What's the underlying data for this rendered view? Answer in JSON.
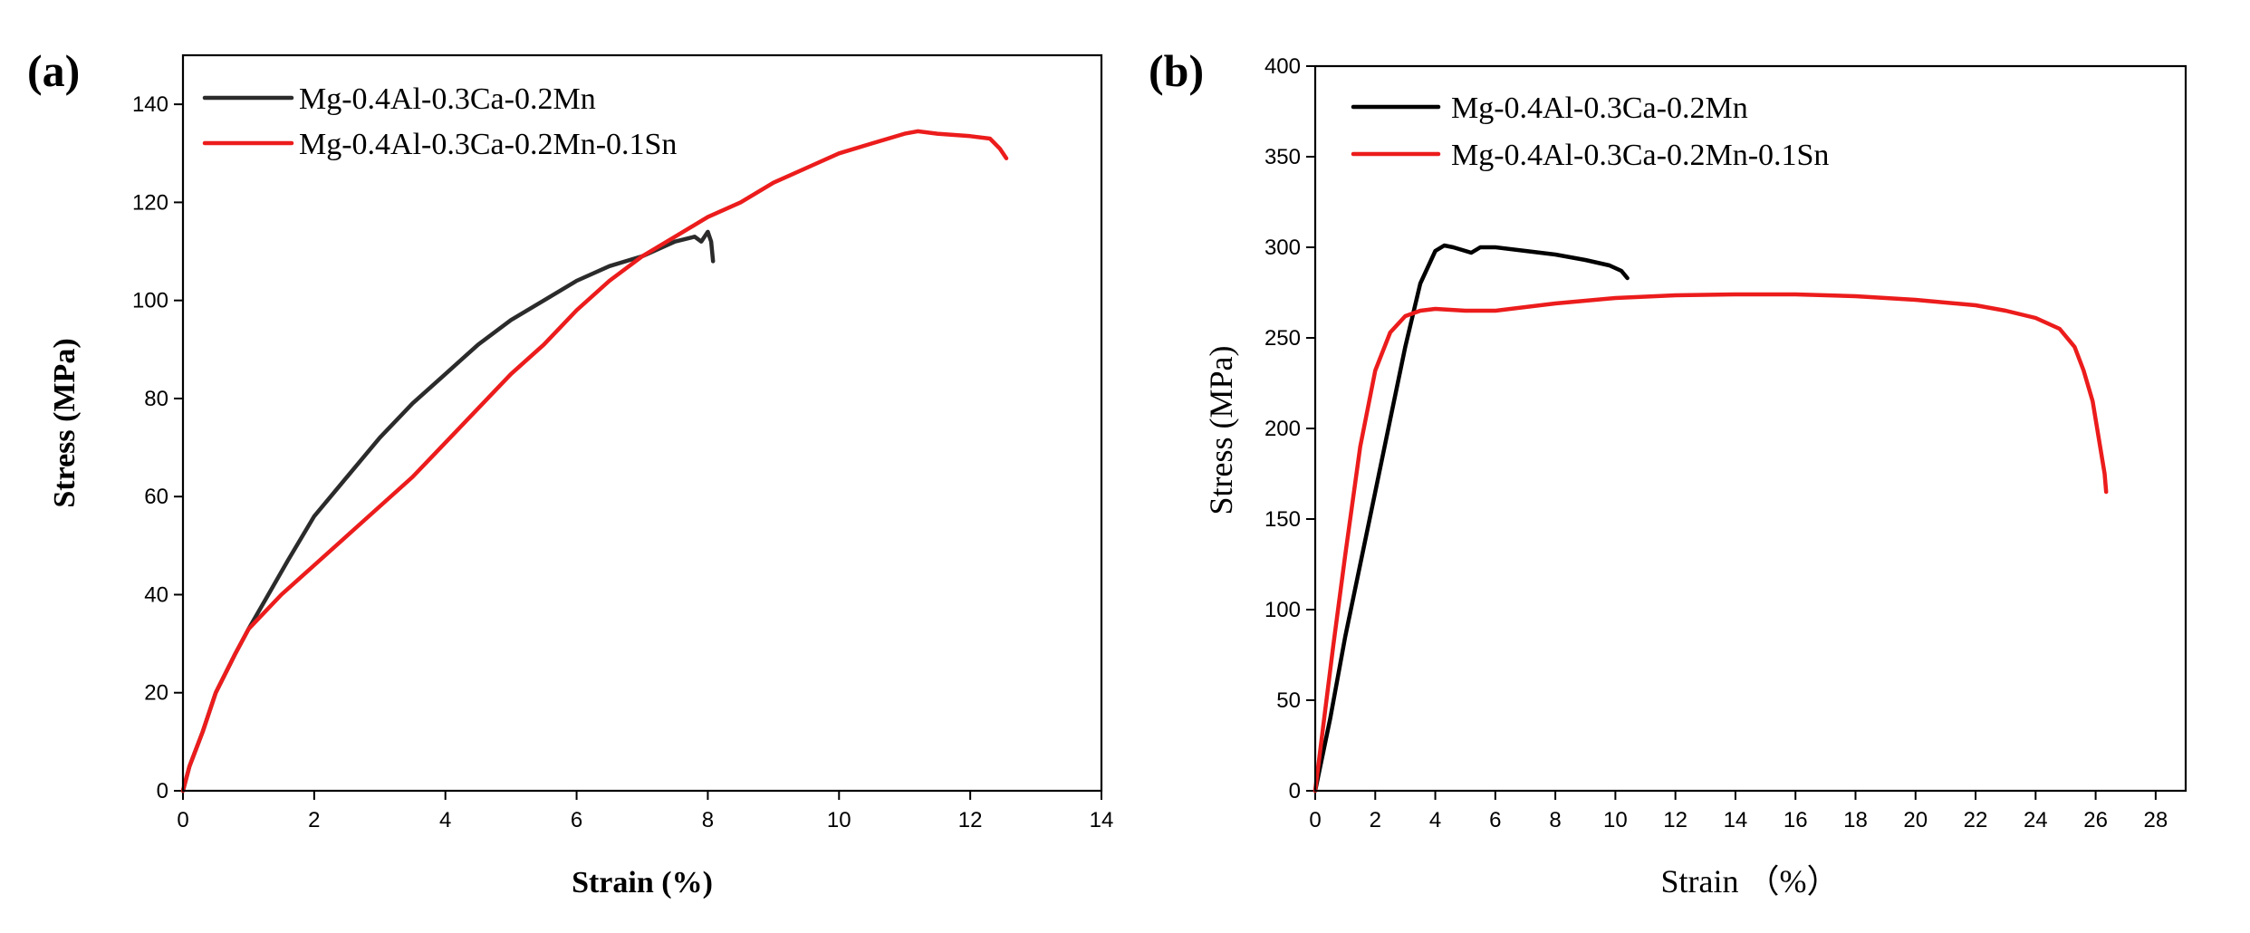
{
  "chart_data": [
    {
      "type": "line",
      "panel_label": "(a)",
      "xlabel": "Strain (%)",
      "ylabel": "Stress (MPa)",
      "xlim": [
        0,
        14
      ],
      "ylim": [
        0,
        150
      ],
      "xticks": [
        0,
        2,
        4,
        6,
        8,
        10,
        12,
        14
      ],
      "yticks": [
        0,
        20,
        40,
        60,
        80,
        100,
        120,
        140
      ],
      "legend_position": "top-left",
      "grid": false,
      "series": [
        {
          "name": "Mg-0.4Al-0.3Ca-0.2Mn",
          "color": "#2b2b2b",
          "points": [
            [
              0,
              0
            ],
            [
              0.1,
              5
            ],
            [
              0.3,
              12
            ],
            [
              0.5,
              20
            ],
            [
              0.8,
              28
            ],
            [
              1.0,
              33
            ],
            [
              1.3,
              40
            ],
            [
              1.6,
              47
            ],
            [
              2.0,
              56
            ],
            [
              2.5,
              64
            ],
            [
              3.0,
              72
            ],
            [
              3.5,
              79
            ],
            [
              4.0,
              85
            ],
            [
              4.5,
              91
            ],
            [
              5.0,
              96
            ],
            [
              5.5,
              100
            ],
            [
              6.0,
              104
            ],
            [
              6.5,
              107
            ],
            [
              7.0,
              109
            ],
            [
              7.5,
              112
            ],
            [
              7.8,
              113
            ],
            [
              7.9,
              112
            ],
            [
              8.0,
              114
            ],
            [
              8.05,
              112
            ],
            [
              8.08,
              108
            ]
          ]
        },
        {
          "name": "Mg-0.4Al-0.3Ca-0.2Mn-0.1Sn",
          "color": "#ec1c1c",
          "points": [
            [
              0,
              0
            ],
            [
              0.1,
              5
            ],
            [
              0.3,
              12
            ],
            [
              0.5,
              20
            ],
            [
              0.8,
              28
            ],
            [
              1.0,
              33
            ],
            [
              1.5,
              40
            ],
            [
              2.0,
              46
            ],
            [
              2.5,
              52
            ],
            [
              3.0,
              58
            ],
            [
              3.5,
              64
            ],
            [
              4.0,
              71
            ],
            [
              4.5,
              78
            ],
            [
              5.0,
              85
            ],
            [
              5.5,
              91
            ],
            [
              6.0,
              98
            ],
            [
              6.5,
              104
            ],
            [
              7.0,
              109
            ],
            [
              7.5,
              113
            ],
            [
              8.0,
              117
            ],
            [
              8.5,
              120
            ],
            [
              9.0,
              124
            ],
            [
              9.5,
              127
            ],
            [
              10.0,
              130
            ],
            [
              10.5,
              132
            ],
            [
              11.0,
              134
            ],
            [
              11.2,
              134.5
            ],
            [
              11.5,
              134
            ],
            [
              12.0,
              133.5
            ],
            [
              12.3,
              133
            ],
            [
              12.45,
              131
            ],
            [
              12.55,
              129
            ]
          ]
        }
      ]
    },
    {
      "type": "line",
      "panel_label": "(b)",
      "xlabel": "Strain （%）",
      "ylabel": "Stress (MPa)",
      "xlim": [
        0,
        29
      ],
      "ylim": [
        0,
        400
      ],
      "xticks": [
        0,
        2,
        4,
        6,
        8,
        10,
        12,
        14,
        16,
        18,
        20,
        22,
        24,
        26,
        28
      ],
      "yticks": [
        0,
        50,
        100,
        150,
        200,
        250,
        300,
        350,
        400
      ],
      "legend_position": "top-left",
      "grid": false,
      "series": [
        {
          "name": "Mg-0.4Al-0.3Ca-0.2Mn",
          "color": "#000000",
          "points": [
            [
              0,
              0
            ],
            [
              0.5,
              40
            ],
            [
              1,
              85
            ],
            [
              1.5,
              125
            ],
            [
              2,
              165
            ],
            [
              2.5,
              205
            ],
            [
              3,
              245
            ],
            [
              3.5,
              280
            ],
            [
              4,
              298
            ],
            [
              4.3,
              301
            ],
            [
              4.6,
              300
            ],
            [
              5,
              298
            ],
            [
              5.2,
              297
            ],
            [
              5.5,
              300
            ],
            [
              6,
              300
            ],
            [
              7,
              298
            ],
            [
              8,
              296
            ],
            [
              9,
              293
            ],
            [
              9.8,
              290
            ],
            [
              10.2,
              287
            ],
            [
              10.4,
              283
            ]
          ]
        },
        {
          "name": "Mg-0.4Al-0.3Ca-0.2Mn-0.1Sn",
          "color": "#ec1c1c",
          "points": [
            [
              0,
              0
            ],
            [
              0.3,
              40
            ],
            [
              0.6,
              80
            ],
            [
              1,
              130
            ],
            [
              1.5,
              190
            ],
            [
              2,
              232
            ],
            [
              2.5,
              253
            ],
            [
              3,
              262
            ],
            [
              3.5,
              265
            ],
            [
              4,
              266
            ],
            [
              5,
              265
            ],
            [
              6,
              265
            ],
            [
              8,
              269
            ],
            [
              10,
              272
            ],
            [
              12,
              273.5
            ],
            [
              14,
              274
            ],
            [
              16,
              274
            ],
            [
              18,
              273
            ],
            [
              20,
              271
            ],
            [
              22,
              268
            ],
            [
              23,
              265
            ],
            [
              24,
              261
            ],
            [
              24.8,
              255
            ],
            [
              25.3,
              245
            ],
            [
              25.6,
              232
            ],
            [
              25.9,
              215
            ],
            [
              26.1,
              195
            ],
            [
              26.3,
              175
            ],
            [
              26.35,
              165
            ]
          ]
        }
      ]
    }
  ]
}
